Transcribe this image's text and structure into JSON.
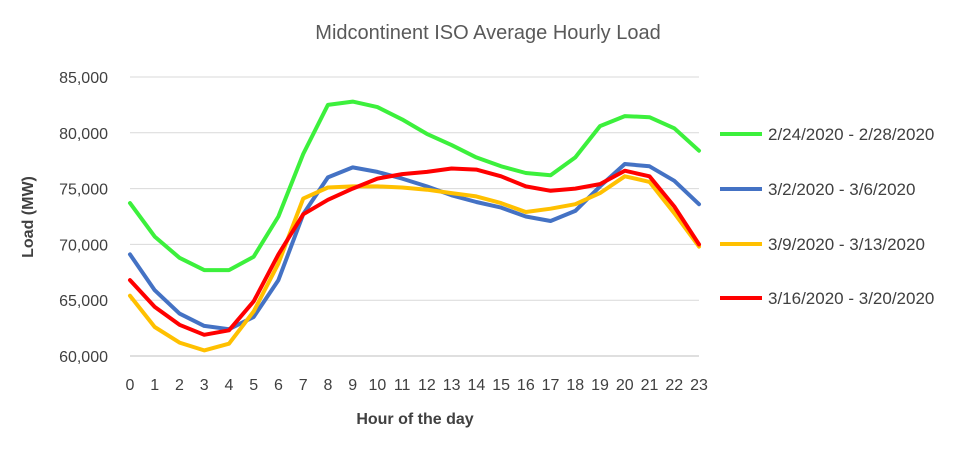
{
  "chart_data": {
    "type": "line",
    "title": "Midcontinent ISO Average Hourly Load",
    "xlabel": "Hour of the day",
    "ylabel": "Load (MW)",
    "x": [
      0,
      1,
      2,
      3,
      4,
      5,
      6,
      7,
      8,
      9,
      10,
      11,
      12,
      13,
      14,
      15,
      16,
      17,
      18,
      19,
      20,
      21,
      22,
      23
    ],
    "x_tick_labels": [
      "0",
      "1",
      "2",
      "3",
      "4",
      "5",
      "6",
      "7",
      "8",
      "9",
      "10",
      "11",
      "12",
      "13",
      "14",
      "15",
      "16",
      "17",
      "18",
      "19",
      "20",
      "21",
      "22",
      "23"
    ],
    "ylim": [
      60000,
      85000
    ],
    "y_ticks": [
      60000,
      65000,
      70000,
      75000,
      80000,
      85000
    ],
    "y_tick_labels": [
      "60,000",
      "65,000",
      "70,000",
      "75,000",
      "80,000",
      "85,000"
    ],
    "grid": true,
    "legend_position": "right",
    "series": [
      {
        "name": "2/24/2020 - 2/28/2020",
        "color": "#3cf03c",
        "values": [
          73700,
          70700,
          68800,
          67700,
          67700,
          68900,
          72500,
          78100,
          82500,
          82800,
          82300,
          81200,
          79900,
          78900,
          77800,
          77000,
          76400,
          76200,
          77800,
          80600,
          81500,
          81400,
          80400,
          78400
        ]
      },
      {
        "name": "3/2/2020 - 3/6/2020",
        "color": "#4472c4",
        "values": [
          69100,
          65900,
          63800,
          62700,
          62400,
          63500,
          66800,
          72700,
          76000,
          76900,
          76500,
          75900,
          75200,
          74400,
          73800,
          73300,
          72500,
          72100,
          73000,
          75200,
          77200,
          77000,
          75700,
          73600
        ]
      },
      {
        "name": "3/9/2020 - 3/13/2020",
        "color": "#ffc000",
        "values": [
          65400,
          62600,
          61200,
          60500,
          61100,
          64000,
          68300,
          74100,
          75100,
          75200,
          75200,
          75100,
          74900,
          74600,
          74300,
          73700,
          72900,
          73200,
          73600,
          74600,
          76100,
          75600,
          72800,
          69800
        ]
      },
      {
        "name": "3/16/2020 - 3/20/2020",
        "color": "#ff0000",
        "values": [
          66800,
          64400,
          62800,
          61900,
          62300,
          64900,
          69100,
          72700,
          74000,
          75000,
          75900,
          76300,
          76500,
          76800,
          76700,
          76100,
          75200,
          74800,
          75000,
          75400,
          76600,
          76100,
          73400,
          70000
        ]
      }
    ]
  }
}
